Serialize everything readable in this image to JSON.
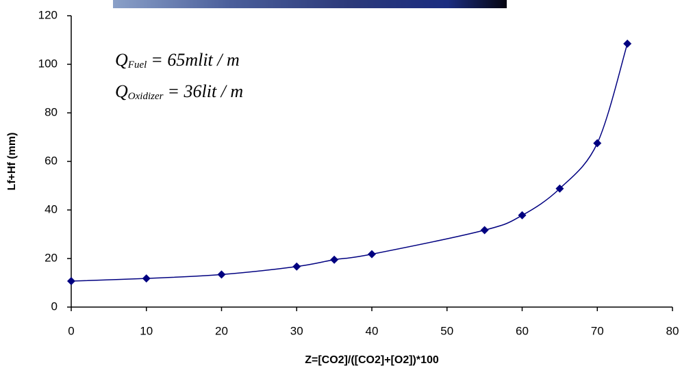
{
  "chart_data": {
    "type": "line",
    "x_label": "Z=[CO2]/([CO2]+[O2])*100",
    "y_label": "Lf+Hf (mm)",
    "x": [
      0,
      10,
      20,
      30,
      35,
      40,
      55,
      60,
      65,
      70,
      74
    ],
    "series": [
      {
        "color": "#000080",
        "values": [
          10.7,
          11.8,
          13.4,
          16.7,
          19.5,
          21.8,
          31.7,
          37.8,
          48.8,
          67.5,
          108.5
        ]
      }
    ],
    "xlim": [
      0,
      80
    ],
    "xticks": [
      0,
      10,
      20,
      30,
      40,
      50,
      60,
      70,
      80
    ],
    "ylim": [
      0,
      120
    ],
    "yticks": [
      0,
      20,
      40,
      60,
      80,
      100,
      120
    ],
    "grid": false,
    "annotations": [
      {
        "symbol": "Q",
        "subscript": "Fuel",
        "text": "= 65mlit / m"
      },
      {
        "symbol": "Q",
        "subscript": "Oxidizer",
        "text": "= 36lit / m"
      }
    ]
  }
}
